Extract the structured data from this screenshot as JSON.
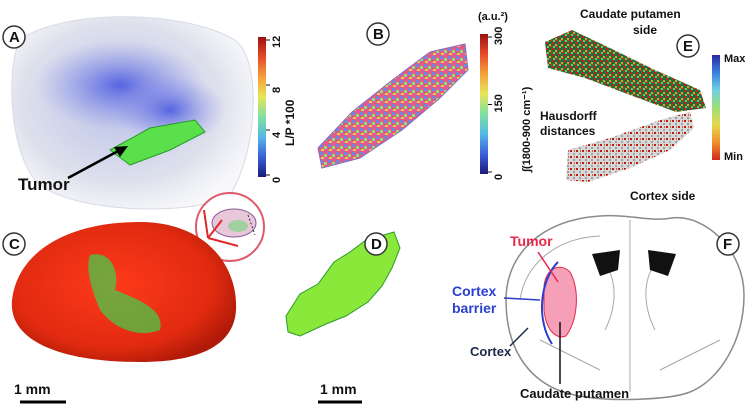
{
  "panel_letters": [
    "A",
    "B",
    "C",
    "D",
    "E",
    "F"
  ],
  "panel_a": {
    "annotation": "Tumor",
    "colorbar": {
      "label": "L/P *100",
      "ticks": [
        "0",
        "4",
        "8",
        "12"
      ],
      "colors": [
        "#1a1a7a",
        "#3a5fd9",
        "#55b8e6",
        "#7fe0a0",
        "#e6e65a",
        "#f5a03a",
        "#e64a2a",
        "#9a1010"
      ]
    }
  },
  "panel_b": {
    "colorbar": {
      "unit": "(a.u.²)",
      "label": "∫(1800-900 cm⁻¹)",
      "ticks": [
        "0",
        "150",
        "300"
      ],
      "colors": [
        "#1a1a7a",
        "#3a5fd9",
        "#55b8e6",
        "#7fe0a0",
        "#e6e65a",
        "#f5a03a",
        "#e64a2a",
        "#9a1010"
      ]
    }
  },
  "panel_c": {
    "scalebar": "1 mm"
  },
  "panel_d": {
    "scalebar": "1 mm"
  },
  "panel_e": {
    "top_caption_line1": "Caudate putamen",
    "top_caption_line2": "side",
    "middle_caption_line1": "Hausdorff",
    "middle_caption_line2": "distances",
    "bottom_caption": "Cortex side",
    "colorbar": {
      "max_label": "Max",
      "min_label": "Min",
      "colors": [
        "#2a2aa0",
        "#3a7fe0",
        "#6fd0e0",
        "#9be07a",
        "#e6d84a",
        "#f0902a",
        "#d02a1a"
      ]
    }
  },
  "panel_f": {
    "labels": {
      "tumor": "Tumor",
      "cortex_barrier_line1": "Cortex",
      "cortex_barrier_line2": "barrier",
      "cortex": "Cortex",
      "caudate_putamen": "Caudate putamen"
    },
    "colors": {
      "tumor": "#e8284a",
      "barrier": "#2a3fd0",
      "tumor_fill": "#f5a0b8"
    }
  }
}
